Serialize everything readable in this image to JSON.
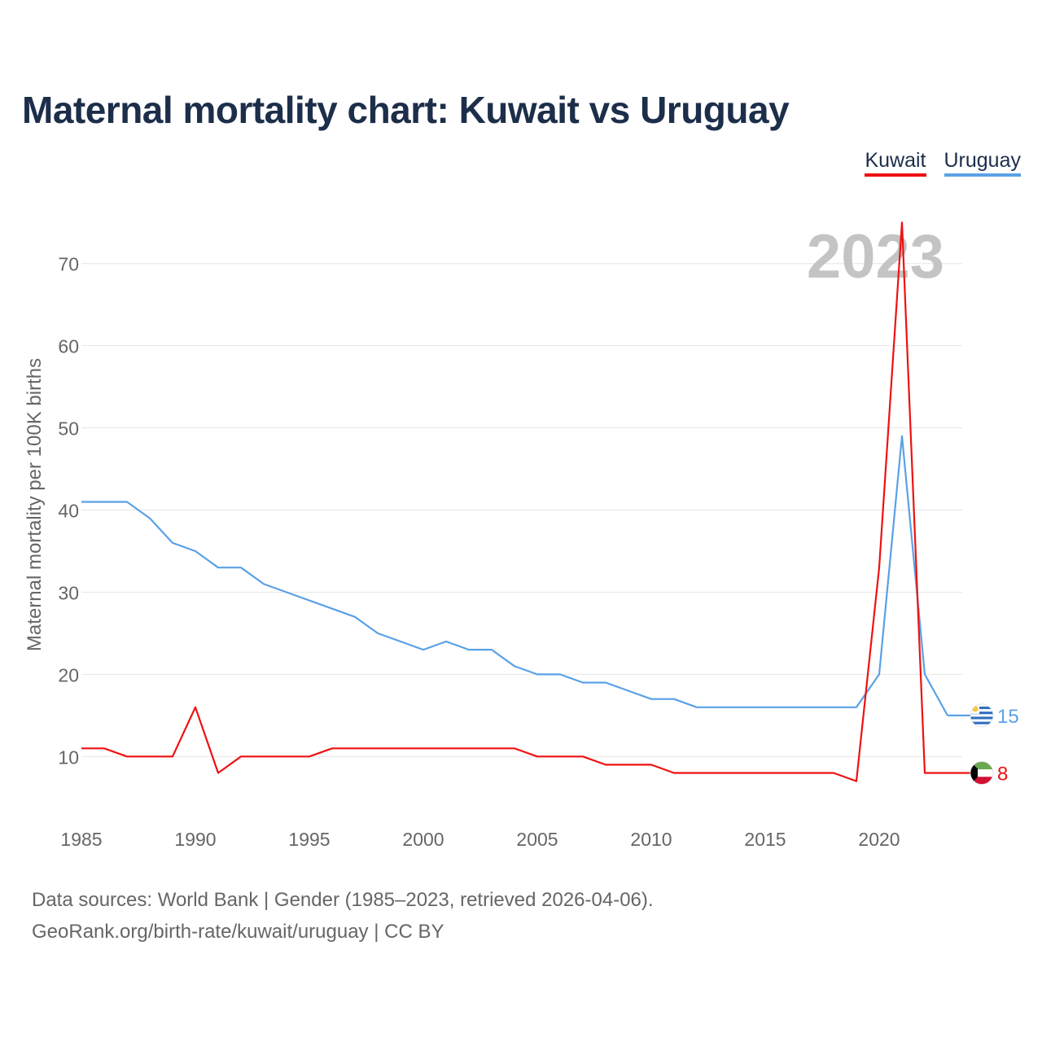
{
  "title": "Maternal mortality chart: Kuwait vs Uruguay",
  "legend": {
    "kuwait": "Kuwait",
    "uruguay": "Uruguay"
  },
  "year_label": "2023",
  "source": {
    "line1": "Data sources: World Bank | Gender (1985–2023, retrieved 2026-04-06).",
    "line2": "GeoRank.org/birth-rate/kuwait/uruguay | CC BY"
  },
  "colors": {
    "kuwait": "#ee1111",
    "uruguay": "#5aa1e6",
    "title": "#1c2e4a",
    "grid": "#e6e6e6",
    "axis_text": "#666666",
    "year_text": "#c4c4c4"
  },
  "chart_data": {
    "type": "line",
    "title": "Maternal mortality chart: Kuwait vs Uruguay",
    "xlabel": "",
    "ylabel": "Maternal mortality per 100K births",
    "xlim": [
      1985,
      2023
    ],
    "ylim": [
      3,
      78
    ],
    "x_ticks": [
      1985,
      1990,
      1995,
      2000,
      2005,
      2010,
      2015,
      2020
    ],
    "y_ticks": [
      10,
      20,
      30,
      40,
      50,
      60,
      70
    ],
    "grid": true,
    "legend_position": "top-right",
    "x": [
      1985,
      1986,
      1987,
      1988,
      1989,
      1990,
      1991,
      1992,
      1993,
      1994,
      1995,
      1996,
      1997,
      1998,
      1999,
      2000,
      2001,
      2002,
      2003,
      2004,
      2005,
      2006,
      2007,
      2008,
      2009,
      2010,
      2011,
      2012,
      2013,
      2014,
      2015,
      2016,
      2017,
      2018,
      2019,
      2020,
      2021,
      2022,
      2023
    ],
    "series": [
      {
        "name": "Uruguay",
        "color": "#5aa1e6",
        "end_label": "15",
        "values": [
          41,
          41,
          41,
          39,
          36,
          35,
          33,
          33,
          31,
          30,
          29,
          28,
          27,
          25,
          24,
          23,
          24,
          23,
          23,
          21,
          20,
          20,
          19,
          19,
          18,
          17,
          17,
          16,
          16,
          16,
          16,
          16,
          16,
          16,
          16,
          20,
          49,
          20,
          15
        ]
      },
      {
        "name": "Kuwait",
        "color": "#ee1111",
        "end_label": "8",
        "values": [
          11,
          11,
          10,
          10,
          10,
          16,
          8,
          10,
          10,
          10,
          10,
          11,
          11,
          11,
          11,
          11,
          11,
          11,
          11,
          11,
          10,
          10,
          10,
          9,
          9,
          9,
          8,
          8,
          8,
          8,
          8,
          8,
          8,
          8,
          7,
          33,
          75,
          8,
          8
        ]
      }
    ]
  }
}
